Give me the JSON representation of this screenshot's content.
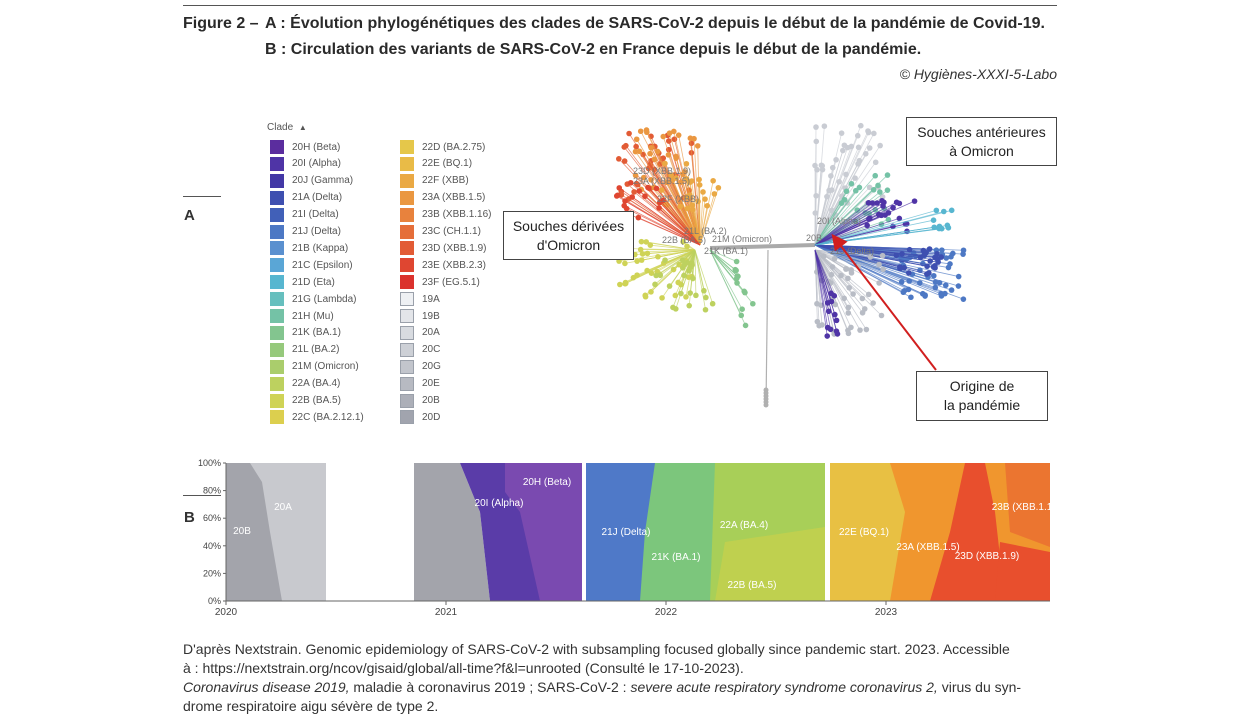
{
  "header": {
    "figure_label": "Figure 2 –",
    "line_a": "A : Évolution phylogénétiques des clades de SARS-CoV-2 depuis le début de la pandémie de Covid-19.",
    "line_b": "B : Circulation des variants de SARS-CoV-2 en France depuis le début de la pandémie.",
    "credit": "© Hygiènes-XXXI-5-Labo"
  },
  "panels": {
    "a": "A",
    "b": "B"
  },
  "legend": {
    "title": "Clade",
    "col1": [
      {
        "label": "20H (Beta)",
        "color": "#5b2d9e"
      },
      {
        "label": "20I (Alpha)",
        "color": "#4f34a6"
      },
      {
        "label": "20J (Gamma)",
        "color": "#4338a6"
      },
      {
        "label": "21A (Delta)",
        "color": "#3e4fb0"
      },
      {
        "label": "21I (Delta)",
        "color": "#4160b8"
      },
      {
        "label": "21J (Delta)",
        "color": "#4d78c4"
      },
      {
        "label": "21B (Kappa)",
        "color": "#5a90cf"
      },
      {
        "label": "21C (Epsilon)",
        "color": "#5aa6d6"
      },
      {
        "label": "21D (Eta)",
        "color": "#57b6d0"
      },
      {
        "label": "21G (Lambda)",
        "color": "#66bfbe"
      },
      {
        "label": "21H (Mu)",
        "color": "#74c2a6"
      },
      {
        "label": "21K (BA.1)",
        "color": "#83c58f"
      },
      {
        "label": "21L (BA.2)",
        "color": "#96c97c"
      },
      {
        "label": "21M (Omicron)",
        "color": "#aacd6c"
      },
      {
        "label": "22A (BA.4)",
        "color": "#bdd15f"
      },
      {
        "label": "22B (BA.5)",
        "color": "#cfd356"
      },
      {
        "label": "22C (BA.2.12.1)",
        "color": "#dccf4e"
      }
    ],
    "col2": [
      {
        "label": "22D (BA.2.75)",
        "color": "#e5c74a"
      },
      {
        "label": "22E (BQ.1)",
        "color": "#e9bb47"
      },
      {
        "label": "22F (XBB)",
        "color": "#eaa944"
      },
      {
        "label": "23A (XBB.1.5)",
        "color": "#ea9741"
      },
      {
        "label": "23B (XBB.1.16)",
        "color": "#e8823d"
      },
      {
        "label": "23C (CH.1.1)",
        "color": "#e56e39"
      },
      {
        "label": "23D (XBB.1.9)",
        "color": "#e25b35"
      },
      {
        "label": "23E (XBB.2.3)",
        "color": "#df4631"
      },
      {
        "label": "23F (EG.5.1)",
        "color": "#db322d"
      },
      {
        "label": "19A",
        "color": "#eef0f3"
      },
      {
        "label": "19B",
        "color": "#e3e5e9"
      },
      {
        "label": "20A",
        "color": "#d8dbe0"
      },
      {
        "label": "20C",
        "color": "#cdd0d6"
      },
      {
        "label": "20G",
        "color": "#c2c5cc"
      },
      {
        "label": "20E",
        "color": "#b7bac2"
      },
      {
        "label": "20B",
        "color": "#acafb8"
      },
      {
        "label": "20D",
        "color": "#a1a4ae"
      }
    ]
  },
  "callouts": {
    "omicron_derived": [
      "Souches dérivées",
      "d'Omicron"
    ],
    "pre_omicron": [
      "Souches antérieures",
      "à Omicron"
    ],
    "origin": [
      "Origine de",
      "la pandémie"
    ]
  },
  "tree_labels": [
    "23D (XBB.1.9)",
    "23A (XBB.1.5)",
    "22F (XBB)",
    "21L (BA.2)",
    "22B (BA.5)",
    "21M (Omicron)",
    "21K (BA.1)",
    "20I (Alpha)",
    "20B",
    "21J (Delta)"
  ],
  "chart_data": {
    "type": "area",
    "title": "",
    "xlabel": "",
    "ylabel": "",
    "x_ticks": [
      "2020",
      "2021",
      "2022",
      "2023"
    ],
    "y_ticks": [
      "0%",
      "20%",
      "40%",
      "60%",
      "80%",
      "100%"
    ],
    "ylim": [
      0,
      100
    ],
    "unit": "%",
    "stream_labels": [
      "20B",
      "20A",
      "20H (Beta)",
      "20I (Alpha)",
      "21J (Delta)",
      "21K (BA.1)",
      "22A (BA.4)",
      "22B (BA.5)",
      "22E (BQ.1)",
      "23A (XBB.1.5)",
      "23D (XBB.1.9)",
      "23B (XBB.1.1"
    ],
    "series_colors": {
      "20B": "#a3a4ab",
      "20A": "#c8c9ce",
      "20I (Alpha)": "#5a3ca8",
      "20H (Beta)": "#7d4bb0",
      "21J (Delta)": "#4f79c8",
      "21K (BA.1)": "#7cc67c",
      "22A (BA.4)": "#a8cf58",
      "22B (BA.5)": "#c3d04e",
      "22E (BQ.1)": "#e8c043",
      "23A (XBB.1.5)": "#f0962e",
      "23D (XBB.1.9)": "#e84f2d",
      "23B (XBB.1.1": "#eb7530"
    }
  },
  "footer": {
    "line1": "D'après Nextstrain. Genomic epidemiology of SARS-CoV-2 with subsampling focused globally since pandemic start. 2023. Accessible",
    "line2": "à : https://nextstrain.org/ncov/gisaid/global/all-time?f&l=unrooted (Consulté le 17-10-2023).",
    "line3_italic1": "Coronavirus disease 2019,",
    "line3_plain1": " maladie à coronavirus 2019 ; SARS-CoV-2 : ",
    "line3_italic2": "severe acute respiratory syndrome coronavirus 2,",
    "line3_plain2": " virus du syn-",
    "line4": "drome respiratoire aigu sévère de type 2."
  }
}
